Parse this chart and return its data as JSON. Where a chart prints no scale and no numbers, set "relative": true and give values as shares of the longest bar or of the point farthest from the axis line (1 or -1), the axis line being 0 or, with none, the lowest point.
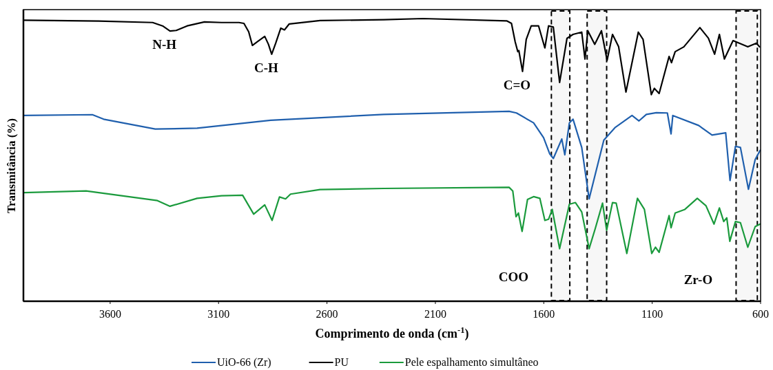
{
  "chart_data": {
    "type": "line",
    "xlabel": "Comprimento de onda (cm$^{-1}$)",
    "ylabel": "Transmitância (%)",
    "relative": true,
    "xlim": [
      4000,
      600
    ],
    "xticks": [
      3600,
      3100,
      2600,
      2100,
      1600,
      1100,
      600
    ],
    "legend": "bottom",
    "series": [
      {
        "name": "UiO-66 (Zr)",
        "color": "#1f5fad",
        "x": [
          4000,
          3682,
          3630,
          3392,
          3199,
          2860,
          2338,
          1760,
          1726,
          1647,
          1601,
          1573,
          1556,
          1517,
          1503,
          1482,
          1465,
          1425,
          1391,
          1323,
          1272,
          1193,
          1161,
          1127,
          1081,
          1030,
          1013,
          1005,
          886,
          824,
          761,
          741,
          716,
          693,
          656,
          625,
          602
        ],
        "values": [
          0.657,
          0.66,
          0.644,
          0.609,
          0.612,
          0.64,
          0.661,
          0.672,
          0.666,
          0.631,
          0.579,
          0.522,
          0.505,
          0.574,
          0.518,
          0.631,
          0.644,
          0.544,
          0.362,
          0.57,
          0.614,
          0.657,
          0.638,
          0.661,
          0.667,
          0.666,
          0.592,
          0.657,
          0.622,
          0.588,
          0.596,
          0.427,
          0.548,
          0.544,
          0.396,
          0.501,
          0.534
        ]
      },
      {
        "name": "PU",
        "color": "#000000",
        "x": [
          4000,
          3653,
          3404,
          3358,
          3324,
          3295,
          3245,
          3165,
          3086,
          3006,
          2983,
          2961,
          2944,
          2921,
          2887,
          2870,
          2855,
          2836,
          2813,
          2796,
          2774,
          2632,
          2337,
          2157,
          1771,
          1749,
          1732,
          1720,
          1715,
          1698,
          1681,
          1658,
          1624,
          1595,
          1578,
          1556,
          1527,
          1493,
          1465,
          1425,
          1410,
          1397,
          1365,
          1334,
          1308,
          1283,
          1255,
          1221,
          1164,
          1142,
          1104,
          1090,
          1068,
          1022,
          1011,
          994,
          954,
          880,
          841,
          812,
          790,
          767,
          727,
          659,
          619,
          605
        ],
        "values": [
          0.994,
          0.991,
          0.986,
          0.974,
          0.956,
          0.958,
          0.974,
          0.988,
          0.986,
          0.986,
          0.983,
          0.953,
          0.905,
          0.918,
          0.937,
          0.909,
          0.874,
          0.914,
          0.966,
          0.96,
          0.981,
          0.993,
          0.996,
          1.0,
          0.992,
          0.983,
          0.918,
          0.883,
          0.887,
          0.813,
          0.926,
          0.974,
          0.974,
          0.896,
          0.974,
          0.97,
          0.774,
          0.93,
          0.944,
          0.952,
          0.857,
          0.957,
          0.909,
          0.957,
          0.852,
          0.944,
          0.901,
          0.74,
          0.952,
          0.926,
          0.731,
          0.753,
          0.735,
          0.866,
          0.844,
          0.883,
          0.9,
          0.968,
          0.931,
          0.874,
          0.944,
          0.857,
          0.922,
          0.9,
          0.913,
          0.9
        ]
      },
      {
        "name": "Pele espalhamento simultâneo",
        "color": "#1a9a3c",
        "x": [
          4000,
          3711,
          3382,
          3324,
          3199,
          3086,
          2989,
          2938,
          2887,
          2853,
          2819,
          2791,
          2768,
          2632,
          2337,
          1760,
          1743,
          1728,
          1717,
          1700,
          1675,
          1647,
          1618,
          1595,
          1578,
          1561,
          1527,
          1482,
          1454,
          1425,
          1391,
          1363,
          1329,
          1310,
          1283,
          1266,
          1217,
          1168,
          1136,
          1102,
          1085,
          1068,
          1022,
          1013,
          994,
          949,
          892,
          852,
          815,
          790,
          770,
          756,
          742,
          716,
          693,
          659,
          625,
          602
        ],
        "values": [
          0.384,
          0.39,
          0.356,
          0.336,
          0.364,
          0.373,
          0.375,
          0.308,
          0.341,
          0.286,
          0.369,
          0.362,
          0.379,
          0.395,
          0.399,
          0.403,
          0.39,
          0.299,
          0.312,
          0.247,
          0.36,
          0.37,
          0.364,
          0.286,
          0.29,
          0.325,
          0.186,
          0.343,
          0.349,
          0.316,
          0.186,
          0.256,
          0.347,
          0.251,
          0.349,
          0.347,
          0.169,
          0.364,
          0.325,
          0.169,
          0.191,
          0.173,
          0.303,
          0.26,
          0.312,
          0.325,
          0.364,
          0.338,
          0.273,
          0.33,
          0.282,
          0.295,
          0.212,
          0.282,
          0.278,
          0.191,
          0.264,
          0.273
        ]
      }
    ],
    "bands": [
      {
        "axis": "x",
        "from": 1565,
        "to": 1480,
        "color": "#000000"
      },
      {
        "axis": "x",
        "from": 1400,
        "to": 1310,
        "color": "#000000"
      },
      {
        "axis": "x",
        "from": 713,
        "to": 615,
        "color": "#000000"
      }
    ],
    "annotations": [
      {
        "text": "N-H",
        "x": 3324,
        "y": 0.956
      },
      {
        "text": "C-H",
        "x": 2855,
        "y": 0.874
      },
      {
        "text": "C=O",
        "x": 1698,
        "y": 0.813
      },
      "COO",
      "Zr-O"
    ]
  }
}
